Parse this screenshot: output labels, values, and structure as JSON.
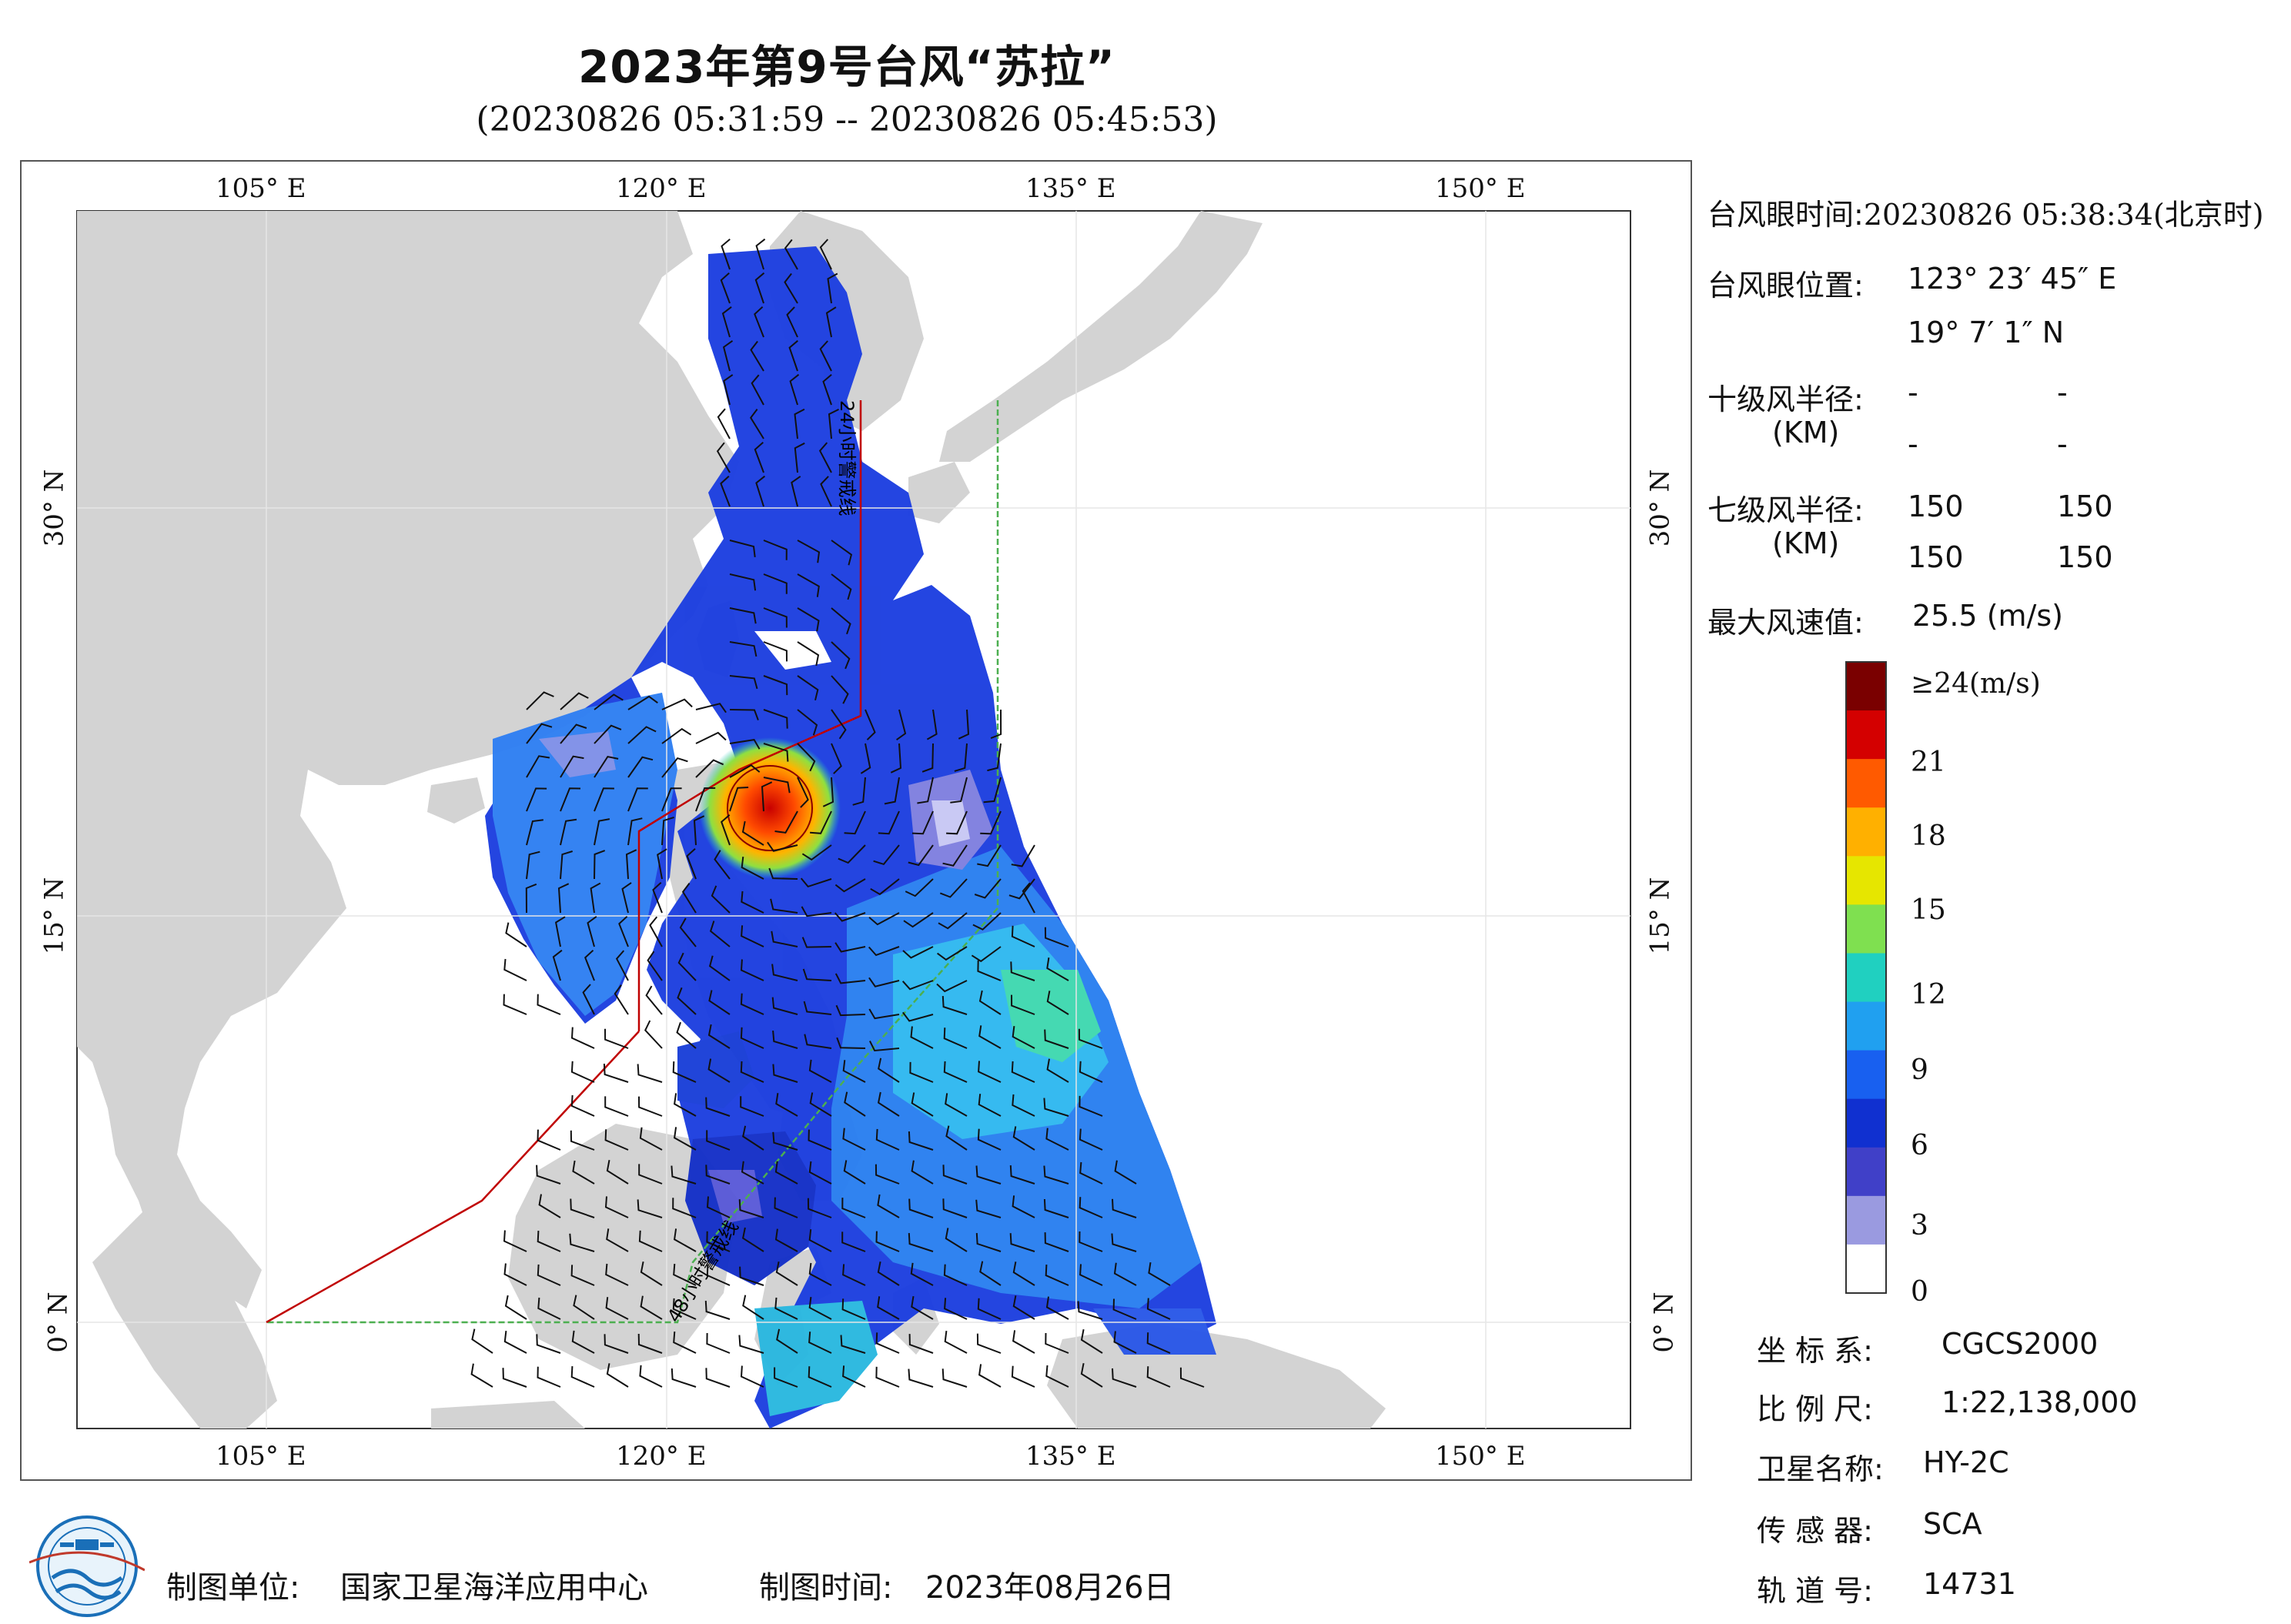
{
  "title": "2023年第9号台风“苏拉”",
  "subtitle": "(20230826 05:31:59 -- 20230826 05:45:53)",
  "axes": {
    "x_ticks": [
      "105° E",
      "120° E",
      "135° E",
      "150° E"
    ],
    "y_ticks": [
      "30° N",
      "15° N",
      "0° N"
    ]
  },
  "track_labels": {
    "h24": "24小时警戒线",
    "h48": "48小时警戒线"
  },
  "info": {
    "eye_time_label": "台风眼时间:",
    "eye_time_value": "20230826 05:38:34(北京时)",
    "eye_pos_label": "台风眼位置:",
    "eye_lon": "123° 23′ 45″ E",
    "eye_lat": "19° 7′ 1″ N",
    "r10_label": "十级风半径:",
    "km_label": "(KM)",
    "r10_values": [
      "-",
      "-",
      "-",
      "-"
    ],
    "r7_label": "七级风半径:",
    "r7_values": [
      "150",
      "150",
      "150",
      "150"
    ],
    "max_wind_label": "最大风速值:",
    "max_wind_value": "25.5  (m/s)"
  },
  "colorbar": {
    "labels": [
      "≥24(m/s)",
      "21",
      "18",
      "15",
      "12",
      "9",
      "6",
      "3",
      "0"
    ],
    "colors": [
      "#7a0000",
      "#d40000",
      "#ff5a00",
      "#ffb000",
      "#e6e600",
      "#7fe050",
      "#20d0c0",
      "#20a0f0",
      "#1860f0",
      "#1030d0",
      "#4040c8",
      "#9a9ae0",
      "#ffffff"
    ]
  },
  "meta": {
    "crs_label": "坐 标 系:",
    "crs_value": "CGCS2000",
    "scale_label": "比 例 尺:",
    "scale_value": "1:22,138,000",
    "sat_label": "卫星名称:",
    "sat_value": "HY-2C",
    "sensor_label": "传 感 器:",
    "sensor_value": "SCA",
    "orbit_label": "轨 道 号:",
    "orbit_value": "14731"
  },
  "footer": {
    "unit_label": "制图单位:",
    "unit_value": "国家卫星海洋应用中心",
    "date_label": "制图时间:",
    "date_value": "2023年08月26日"
  }
}
